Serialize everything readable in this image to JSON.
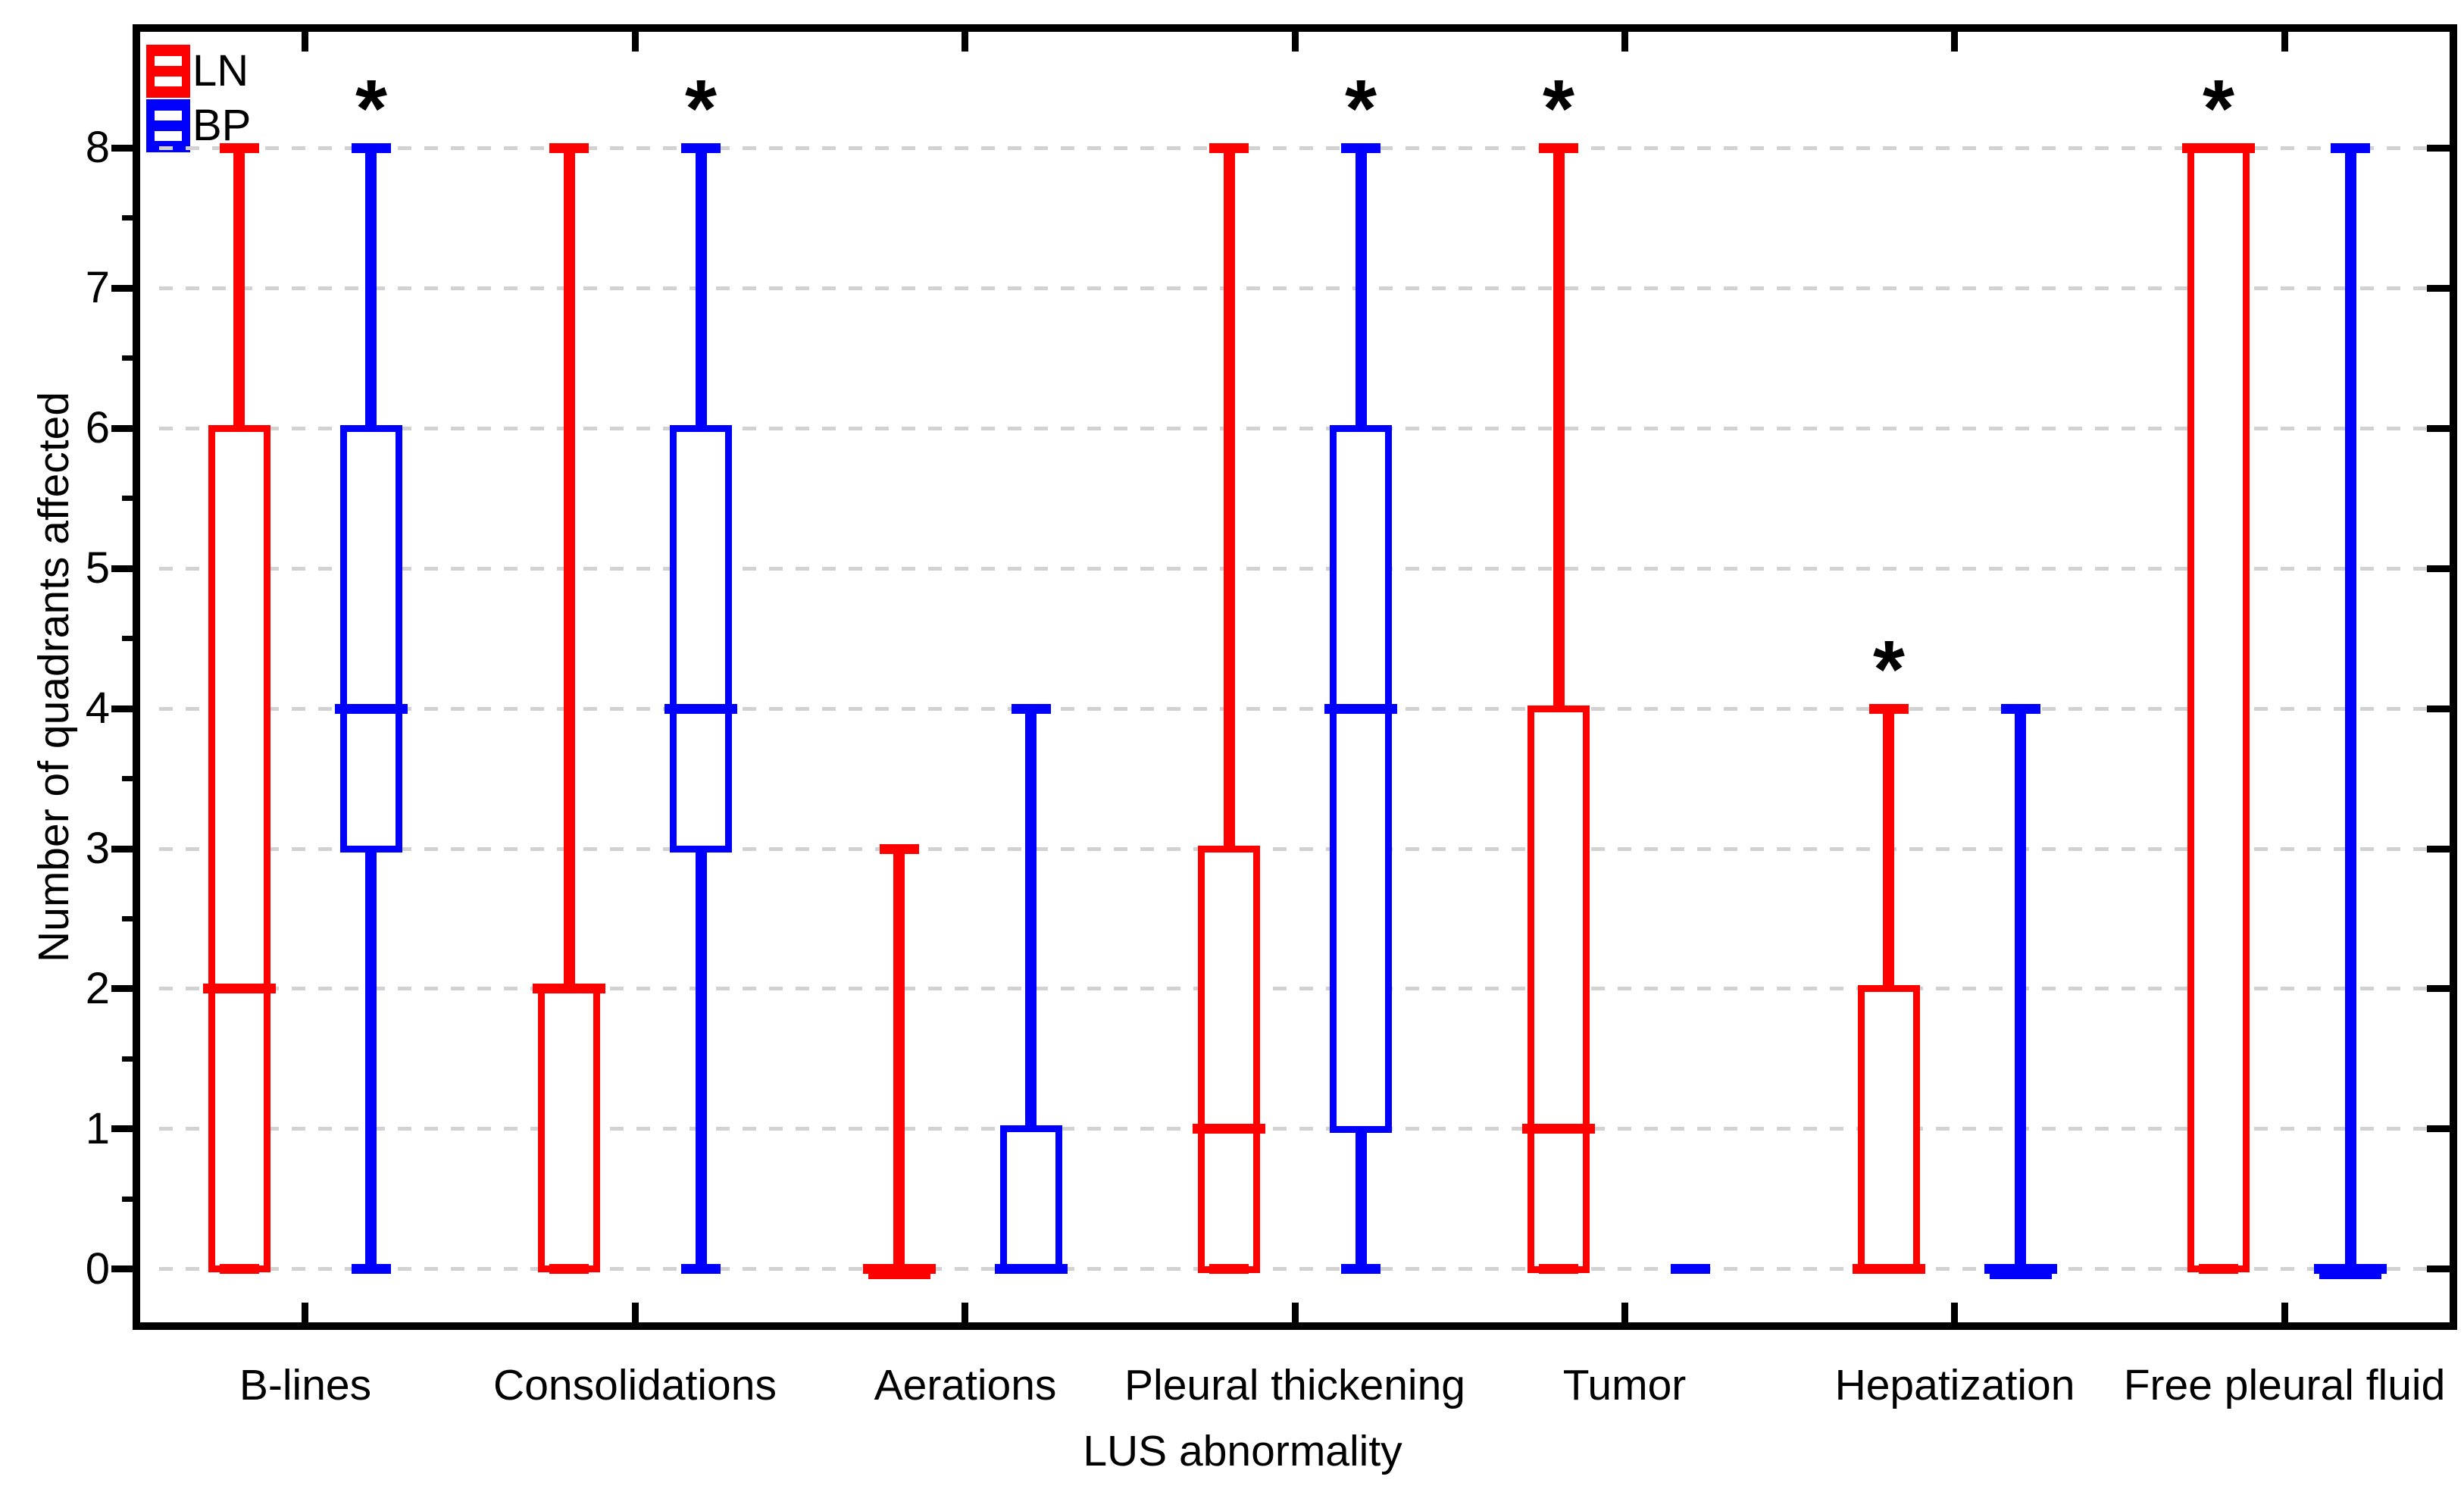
{
  "chart_data": {
    "type": "boxplot",
    "xlabel": "LUS abnormality",
    "ylabel": "Number of quadrants affected",
    "ylim": [
      -0.38,
      8.83
    ],
    "yticks": [
      0,
      1,
      2,
      3,
      4,
      5,
      6,
      7,
      8
    ],
    "minor_tick_step": 0.5,
    "grid": "horizontal-dashed",
    "gridline_color": "#d2d2d2",
    "legend_position": "top-left-inside",
    "star_symbol": "*",
    "categories": [
      "B-lines",
      "Consolidations",
      "Aerations",
      "Pleural thickening",
      "Tumor",
      "Hepatization",
      "Free pleural fluid"
    ],
    "series": [
      {
        "name": "LN",
        "color": "#ff0000",
        "boxes": [
          {
            "min": 0,
            "q1": 0,
            "median": 2,
            "q3": 6,
            "max": 8,
            "star": false
          },
          {
            "min": 0,
            "q1": 0,
            "median": 2,
            "q3": 2,
            "max": 8,
            "star": false
          },
          {
            "min": 0,
            "q1": 0,
            "median": 0,
            "q3": 0,
            "max": 3,
            "star": false
          },
          {
            "min": 0,
            "q1": 0,
            "median": 1,
            "q3": 3,
            "max": 8,
            "star": false
          },
          {
            "min": 0,
            "q1": 0,
            "median": 1,
            "q3": 4,
            "max": 8,
            "star": true
          },
          {
            "min": 0,
            "q1": 0,
            "median": 0,
            "q3": 2,
            "max": 4,
            "star": true
          },
          {
            "min": 0,
            "q1": 0,
            "median": 8,
            "q3": 8,
            "max": 8,
            "star": true
          }
        ]
      },
      {
        "name": "BP",
        "color": "#0000ff",
        "boxes": [
          {
            "min": 0,
            "q1": 3,
            "median": 4,
            "q3": 6,
            "max": 8,
            "star": true
          },
          {
            "min": 0,
            "q1": 3,
            "median": 4,
            "q3": 6,
            "max": 8,
            "star": true
          },
          {
            "min": 0,
            "q1": 0,
            "median": 0,
            "q3": 1,
            "max": 4,
            "star": false
          },
          {
            "min": 0,
            "q1": 1,
            "median": 4,
            "q3": 6,
            "max": 8,
            "star": true
          },
          {
            "min": 0,
            "q1": 0,
            "median": 0,
            "q3": 0,
            "max": 0,
            "star": false
          },
          {
            "min": 0,
            "q1": 0,
            "median": 0,
            "q3": 0,
            "max": 4,
            "star": false
          },
          {
            "min": 0,
            "q1": 0,
            "median": 0,
            "q3": 0,
            "max": 8,
            "star": false
          }
        ]
      }
    ]
  }
}
